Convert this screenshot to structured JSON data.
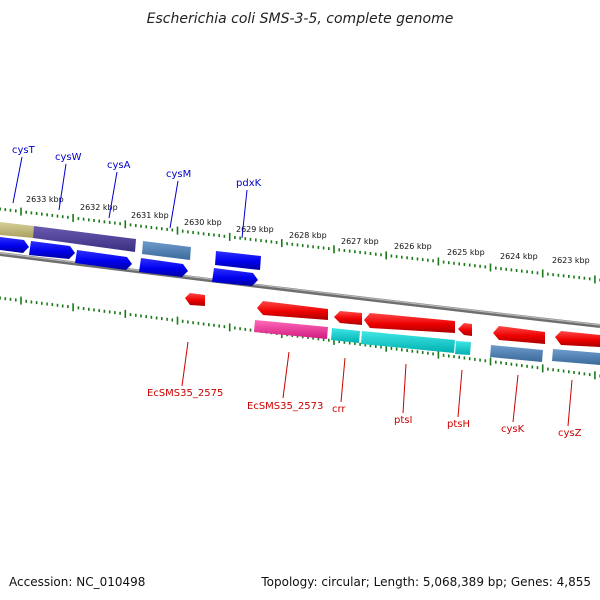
{
  "title": "Escherichia coli SMS-3-5, complete genome",
  "footer": {
    "accession": "Accession: NC_010498",
    "summary": "Topology: circular; Length: 5,068,389 bp; Genes: 4,855"
  },
  "colors": {
    "forward_label": "#0000cc",
    "reverse_label": "#cc0000",
    "tick": "#1a7a1a",
    "backbone": "#808080"
  },
  "ticks": [
    {
      "label": "2633 kbp"
    },
    {
      "label": "2632 kbp"
    },
    {
      "label": "2631 kbp"
    },
    {
      "label": "2630 kbp"
    },
    {
      "label": "2629 kbp"
    },
    {
      "label": "2628 kbp"
    },
    {
      "label": "2627 kbp"
    },
    {
      "label": "2626 kbp"
    },
    {
      "label": "2625 kbp"
    },
    {
      "label": "2624 kbp"
    },
    {
      "label": "2623 kbp"
    }
  ],
  "forward_genes": [
    {
      "label": "cysT"
    },
    {
      "label": "cysW"
    },
    {
      "label": "cysA"
    },
    {
      "label": "cysM"
    },
    {
      "label": "pdxK"
    }
  ],
  "reverse_genes": [
    {
      "label": "EcSMS35_2575"
    },
    {
      "label": "EcSMS35_2573"
    },
    {
      "label": "crr"
    },
    {
      "label": "ptsI"
    },
    {
      "label": "ptsH"
    },
    {
      "label": "cysK"
    },
    {
      "label": "cysZ"
    }
  ]
}
